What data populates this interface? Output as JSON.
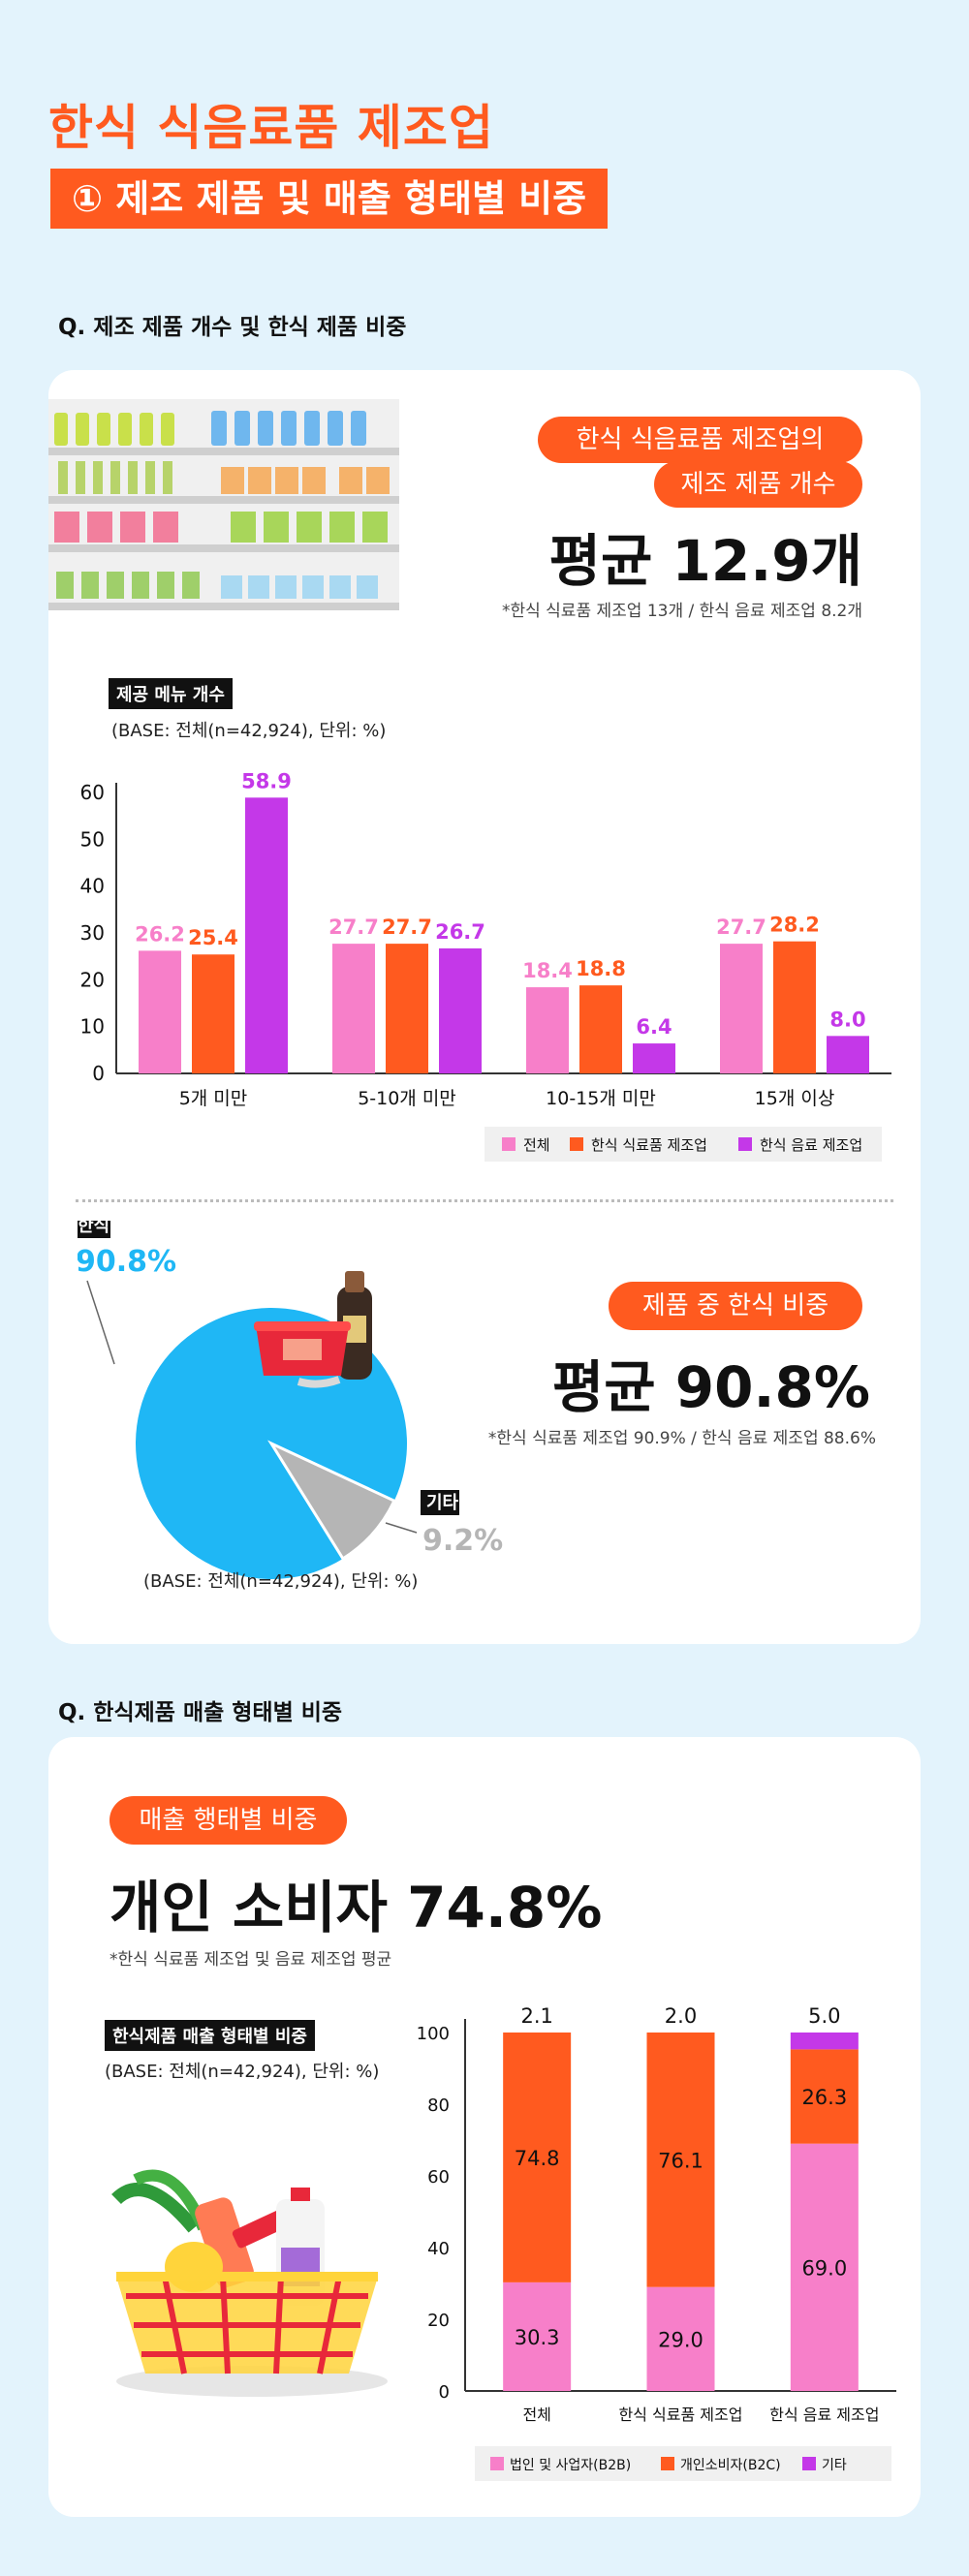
{
  "header": {
    "title": "한식 식음료품 제조업",
    "subtitle": "① 제조 제품 및 매출 형태별 비중"
  },
  "section1": {
    "question": "Q. 제조 제품 개수 및 한식 제품 비중",
    "highlight_line1": "한식 식음료품 제조업의",
    "highlight_line2": "제조 제품 개수",
    "big_value": "평균 12.9개",
    "note": "*한식 식료품 제조업 13개 / 한식 음료 제조업 8.2개"
  },
  "chart1_meta": {
    "tag": "제공 메뉴 개수",
    "base": "(BASE: 전체(n=42,924), 단위: %)"
  },
  "pie_meta": {
    "highlight": "제품 중 한식 비중",
    "big_value": "평균 90.8%",
    "note": "*한식 식료품 제조업 90.9% / 한식 음료 제조업 88.6%",
    "base": "(BASE: 전체(n=42,924), 단위: %)"
  },
  "section2": {
    "question": "Q. 한식제품 매출 형태별 비중",
    "highlight": "매출 행태별 비중",
    "big_value": "개인 소비자 74.8%",
    "note": "*한식 식료품 제조업 및 음료 제조업 평균",
    "tag": "한식제품 매출 형태별 비중",
    "base": "(BASE: 전체(n=42,924), 단위: %)"
  },
  "colors": {
    "accent": "#ff5a1f",
    "pink": "#f77fc9",
    "orange": "#ff5a1f",
    "purple": "#c438e8",
    "pie_main": "#1fb7f5",
    "pie_other": "#b5b5b5"
  },
  "chart_data": [
    {
      "type": "bar",
      "title": "제공 메뉴 개수",
      "categories": [
        "5개 미만",
        "5-10개 미만",
        "10-15개 미만",
        "15개 이상"
      ],
      "series": [
        {
          "name": "전체",
          "values": [
            26.2,
            27.7,
            18.4,
            27.7
          ]
        },
        {
          "name": "한식 식료품 제조업",
          "values": [
            25.4,
            27.7,
            18.8,
            28.2
          ]
        },
        {
          "name": "한식 음료 제조업",
          "values": [
            58.9,
            26.7,
            6.4,
            8.0
          ]
        }
      ],
      "ylim": [
        0,
        60
      ],
      "yticks": [
        0,
        10,
        20,
        30,
        40,
        50,
        60
      ],
      "legend": "bottom-right"
    },
    {
      "type": "pie",
      "labels": [
        "한식",
        "기타"
      ],
      "values": [
        90.8,
        9.2
      ],
      "value_labels": [
        "90.8%",
        "9.2%"
      ]
    },
    {
      "type": "bar",
      "stacked": true,
      "title": "한식제품 매출 형태별 비중",
      "categories": [
        "전체",
        "한식 식료품 제조업",
        "한식 음료 제조업"
      ],
      "series": [
        {
          "name": "법인 및 사업자(B2B)",
          "values": [
            30.3,
            29.0,
            69.0
          ]
        },
        {
          "name": "개인소비자(B2C)",
          "values": [
            74.8,
            76.1,
            26.3
          ]
        },
        {
          "name": "기타",
          "values": [
            2.1,
            2.0,
            5.0
          ]
        }
      ],
      "ylim": [
        0,
        100
      ],
      "yticks": [
        0,
        20,
        40,
        60,
        80,
        100
      ],
      "legend": "bottom-right"
    }
  ]
}
